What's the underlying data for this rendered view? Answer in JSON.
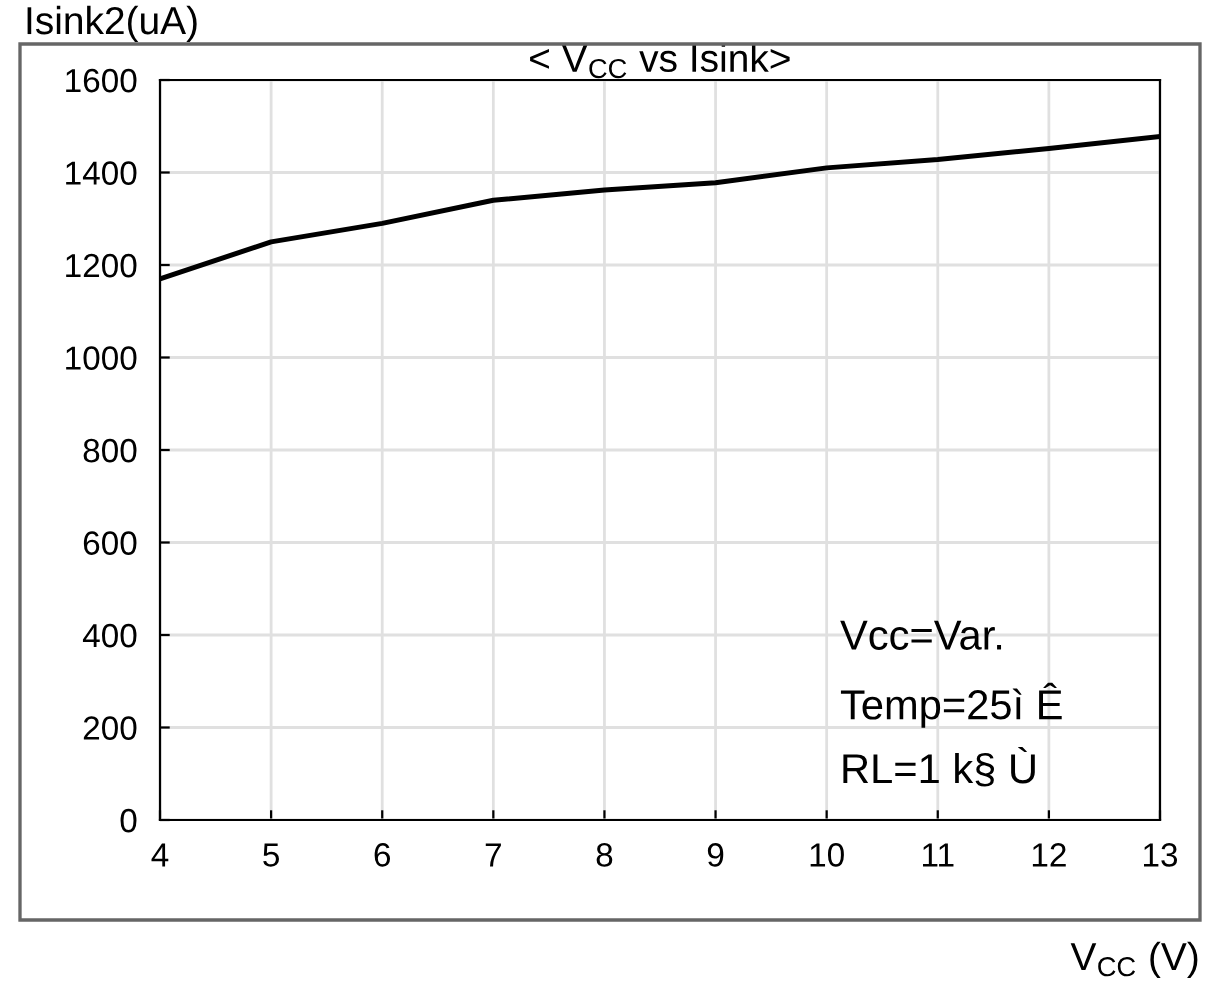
{
  "chart_data": {
    "type": "line",
    "title": "< V$_{CC}$ vs Isink>",
    "xlabel": "V$_{CC}$ (V)",
    "ylabel": "Isink2(uA)",
    "x": [
      4,
      5,
      6,
      7,
      8,
      9,
      10,
      11,
      12,
      13
    ],
    "series": [
      {
        "color": "#000000",
        "values": [
          1170,
          1250,
          1290,
          1340,
          1362,
          1378,
          1410,
          1428,
          1452,
          1478
        ]
      }
    ],
    "xlim": [
      4,
      13
    ],
    "xticks": [
      4,
      5,
      6,
      7,
      8,
      9,
      10,
      11,
      12,
      13
    ],
    "ylim": [
      0,
      1600
    ],
    "yticks": [
      0,
      200,
      400,
      600,
      800,
      1000,
      1200,
      1400,
      1600
    ],
    "grid": true,
    "legend": false,
    "marker": "none",
    "line_style": "solid",
    "annotations": [
      "Vcc=Var.",
      "Temp=25ì Ê",
      "RL=1 k§ Ù"
    ]
  }
}
